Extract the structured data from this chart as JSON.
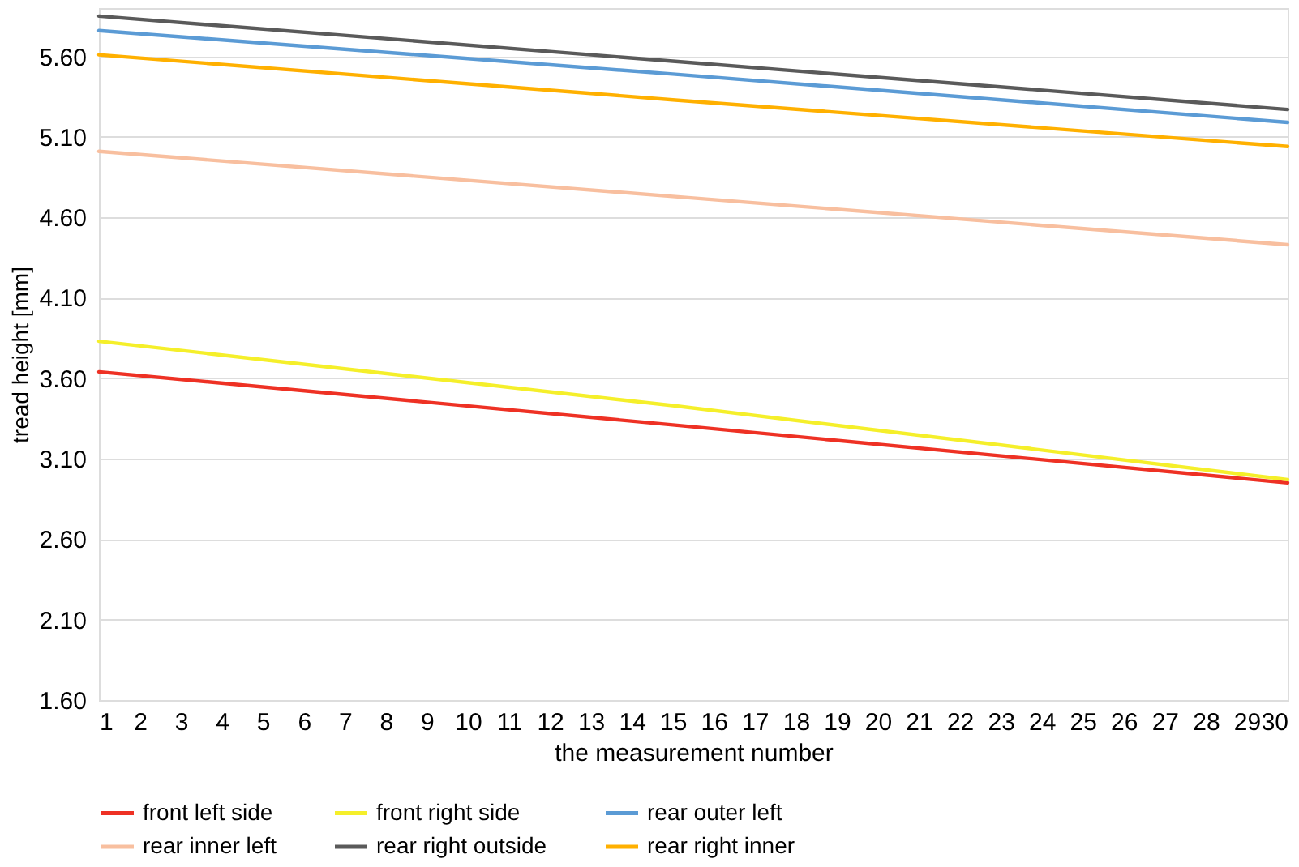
{
  "chart_data": {
    "type": "line",
    "xlabel": "the measurement number",
    "ylabel": "tread height [mm]",
    "xlim": [
      1,
      30
    ],
    "xticks": [
      1,
      2,
      3,
      4,
      5,
      6,
      7,
      8,
      9,
      10,
      11,
      12,
      13,
      14,
      15,
      16,
      17,
      18,
      19,
      20,
      21,
      22,
      23,
      24,
      25,
      26,
      27,
      28,
      29,
      30
    ],
    "ylim": [
      1.6,
      5.9
    ],
    "yticks": [
      {
        "value": 1.6,
        "label": "1.60"
      },
      {
        "value": 2.1,
        "label": "2.10"
      },
      {
        "value": 2.6,
        "label": "2.60"
      },
      {
        "value": 3.1,
        "label": "3.10"
      },
      {
        "value": 3.6,
        "label": "3.60"
      },
      {
        "value": 4.1,
        "label": "4.10"
      },
      {
        "value": 4.6,
        "label": "4.60"
      },
      {
        "value": 5.1,
        "label": "5.10"
      },
      {
        "value": 5.6,
        "label": "5.60"
      }
    ],
    "grid": "y",
    "legend": "bottom",
    "marker": "none",
    "line_style": "solid",
    "series": [
      {
        "name": "front left side",
        "color": "#ee3124",
        "x": [
          1,
          15,
          30
        ],
        "values": [
          3.64,
          3.31,
          2.95
        ]
      },
      {
        "name": "front right side",
        "color": "#f5ef2a",
        "x": [
          1,
          15,
          30
        ],
        "values": [
          3.83,
          3.43,
          2.97
        ]
      },
      {
        "name": "rear outer left",
        "color": "#5b9bd5",
        "x": [
          1,
          15,
          30
        ],
        "values": [
          5.76,
          5.49,
          5.19
        ]
      },
      {
        "name": "rear inner left",
        "color": "#f8bf9f",
        "x": [
          1,
          15,
          30
        ],
        "values": [
          5.01,
          4.73,
          4.43
        ]
      },
      {
        "name": "rear right outside",
        "color": "#5a5a5a",
        "x": [
          1,
          15,
          30
        ],
        "values": [
          5.85,
          5.57,
          5.27
        ]
      },
      {
        "name": "rear right inner",
        "color": "#ffb000",
        "x": [
          1,
          15,
          30
        ],
        "values": [
          5.61,
          5.33,
          5.04
        ]
      }
    ]
  }
}
